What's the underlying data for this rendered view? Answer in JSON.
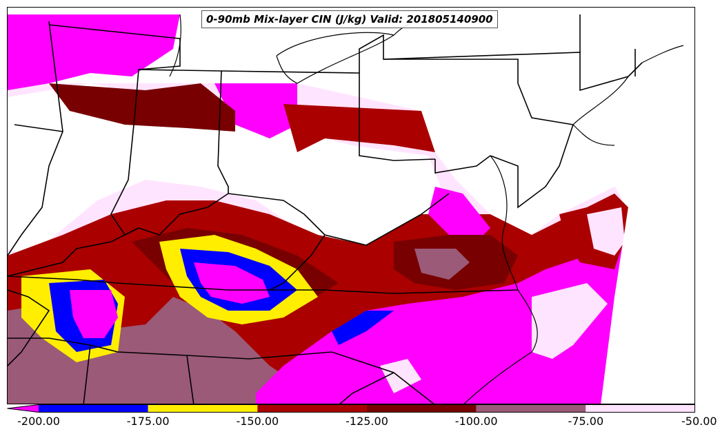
{
  "title": "0-90mb Mix-layer CIN (J/kg) Valid: 201805140900",
  "colorbar": {
    "min": -200,
    "max": -50,
    "extend": "min",
    "ticks": [
      "-200.00",
      "-175.00",
      "-150.00",
      "-125.00",
      "-100.00",
      "-75.00",
      "-50.00"
    ],
    "tick_values": [
      -200,
      -175,
      -150,
      -125,
      -100,
      -75,
      -50
    ],
    "levels": [
      {
        "from": -210,
        "to": -200,
        "color": "#ff00ff"
      },
      {
        "from": -200,
        "to": -175,
        "color": "#0000ff"
      },
      {
        "from": -175,
        "to": -150,
        "color": "#ffee00"
      },
      {
        "from": -150,
        "to": -125,
        "color": "#aa0000"
      },
      {
        "from": -125,
        "to": -100,
        "color": "#780000"
      },
      {
        "from": -100,
        "to": -75,
        "color": "#9a5a78"
      },
      {
        "from": -75,
        "to": -50,
        "color": "#ffe4ff"
      }
    ]
  },
  "map_colors": {
    "background": "#ffffff",
    "magenta": "#ff00ff",
    "blue": "#0000ff",
    "yellow": "#ffee00",
    "red": "#aa0000",
    "dark_red": "#780000",
    "mauve": "#9a5a78",
    "pale_pink": "#ffe4ff",
    "boundaries": "#000000"
  }
}
